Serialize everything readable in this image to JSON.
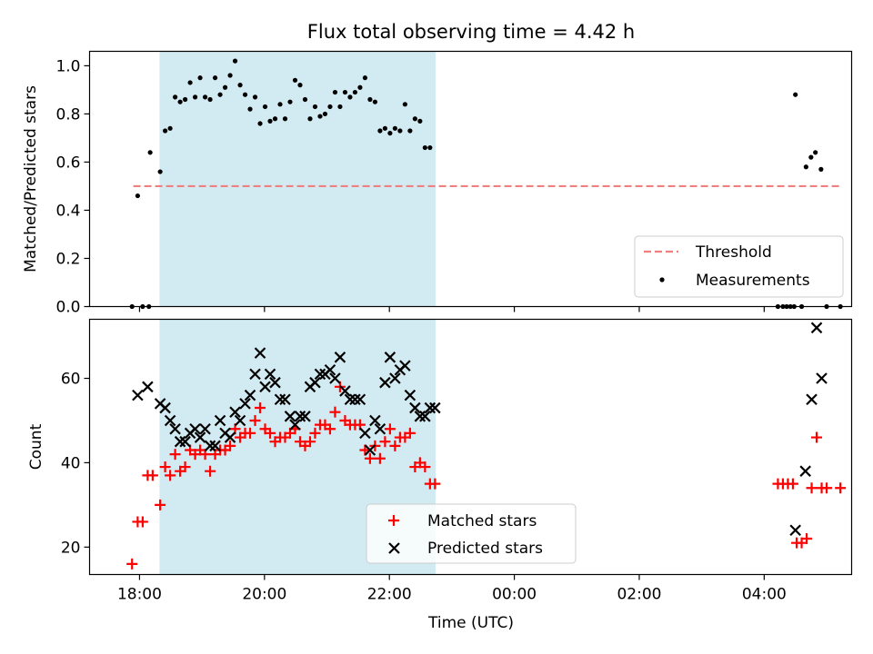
{
  "title": "Flux total observing time = 4.42 h",
  "xlabel": "Time (UTC)",
  "colors": {
    "threshold": "#f08080",
    "measurement": "#000000",
    "matched": "#ff0000",
    "predicted": "#000000",
    "window": "#add8e6"
  },
  "chart_data": [
    {
      "type": "scatter",
      "ylabel": "Matched/Predicted stars",
      "ylim": [
        0,
        1.06
      ],
      "xlim": [
        17.2,
        29.4
      ],
      "x_ticks": [
        18,
        20,
        22,
        24,
        26,
        28
      ],
      "y_ticks": [
        "0.0",
        "0.2",
        "0.4",
        "0.6",
        "0.8",
        "1.0"
      ],
      "x_ticks_labeled": false,
      "shaded_window": [
        18.32,
        22.74
      ],
      "legend_position": "lower right",
      "threshold": {
        "label": "Threshold",
        "y": 0.5,
        "x_range": [
          17.9,
          29.2
        ]
      },
      "series": [
        {
          "name": "Measurements",
          "points": [
            [
              17.88,
              0.0
            ],
            [
              17.97,
              0.46
            ],
            [
              18.05,
              0.0
            ],
            [
              18.15,
              0.0
            ],
            [
              18.17,
              0.64
            ],
            [
              18.33,
              0.56
            ],
            [
              18.41,
              0.73
            ],
            [
              18.49,
              0.74
            ],
            [
              18.57,
              0.87
            ],
            [
              18.65,
              0.85
            ],
            [
              18.73,
              0.86
            ],
            [
              18.81,
              0.93
            ],
            [
              18.89,
              0.87
            ],
            [
              18.97,
              0.95
            ],
            [
              19.05,
              0.87
            ],
            [
              19.13,
              0.86
            ],
            [
              19.21,
              0.95
            ],
            [
              19.29,
              0.88
            ],
            [
              19.37,
              0.91
            ],
            [
              19.45,
              0.96
            ],
            [
              19.53,
              1.02
            ],
            [
              19.61,
              0.92
            ],
            [
              19.69,
              0.88
            ],
            [
              19.77,
              0.82
            ],
            [
              19.85,
              0.87
            ],
            [
              19.93,
              0.76
            ],
            [
              20.01,
              0.83
            ],
            [
              20.09,
              0.77
            ],
            [
              20.17,
              0.78
            ],
            [
              20.25,
              0.84
            ],
            [
              20.33,
              0.78
            ],
            [
              20.41,
              0.85
            ],
            [
              20.49,
              0.94
            ],
            [
              20.57,
              0.92
            ],
            [
              20.65,
              0.86
            ],
            [
              20.73,
              0.78
            ],
            [
              20.81,
              0.83
            ],
            [
              20.89,
              0.79
            ],
            [
              20.97,
              0.8
            ],
            [
              21.05,
              0.83
            ],
            [
              21.13,
              0.89
            ],
            [
              21.21,
              0.83
            ],
            [
              21.29,
              0.89
            ],
            [
              21.37,
              0.87
            ],
            [
              21.45,
              0.89
            ],
            [
              21.53,
              0.91
            ],
            [
              21.61,
              0.95
            ],
            [
              21.69,
              0.86
            ],
            [
              21.77,
              0.85
            ],
            [
              21.85,
              0.73
            ],
            [
              21.93,
              0.74
            ],
            [
              22.01,
              0.72
            ],
            [
              22.09,
              0.74
            ],
            [
              22.17,
              0.73
            ],
            [
              22.25,
              0.84
            ],
            [
              22.33,
              0.73
            ],
            [
              22.41,
              0.78
            ],
            [
              22.49,
              0.77
            ],
            [
              22.57,
              0.66
            ],
            [
              22.65,
              0.66
            ],
            [
              28.22,
              0.0
            ],
            [
              28.3,
              0.0
            ],
            [
              28.36,
              0.0
            ],
            [
              28.42,
              0.0
            ],
            [
              28.48,
              0.0
            ],
            [
              28.5,
              0.88
            ],
            [
              28.6,
              0.0
            ],
            [
              28.67,
              0.58
            ],
            [
              28.75,
              0.62
            ],
            [
              28.82,
              0.64
            ],
            [
              28.91,
              0.57
            ],
            [
              29.0,
              0.0
            ],
            [
              29.22,
              0.0
            ]
          ]
        }
      ]
    },
    {
      "type": "scatter",
      "ylabel": "Count",
      "ylim": [
        13.5,
        74
      ],
      "xlim": [
        17.2,
        29.4
      ],
      "x_ticks": [
        18,
        20,
        22,
        24,
        26,
        28
      ],
      "x_tick_labels": [
        "18:00",
        "20:00",
        "22:00",
        "00:00",
        "02:00",
        "04:00"
      ],
      "y_ticks": [
        "20",
        "40",
        "60"
      ],
      "shaded_window": [
        18.32,
        22.74
      ],
      "legend_position": "lower center",
      "series": [
        {
          "name": "Matched stars",
          "marker": "+",
          "points": [
            [
              17.88,
              16
            ],
            [
              17.97,
              26
            ],
            [
              18.05,
              26
            ],
            [
              18.13,
              37
            ],
            [
              18.21,
              37
            ],
            [
              18.33,
              30
            ],
            [
              18.41,
              39
            ],
            [
              18.49,
              37
            ],
            [
              18.57,
              42
            ],
            [
              18.65,
              38
            ],
            [
              18.73,
              39
            ],
            [
              18.81,
              43
            ],
            [
              18.89,
              42
            ],
            [
              18.97,
              43
            ],
            [
              19.05,
              42
            ],
            [
              19.13,
              38
            ],
            [
              19.21,
              42
            ],
            [
              19.29,
              43
            ],
            [
              19.37,
              43
            ],
            [
              19.45,
              44
            ],
            [
              19.53,
              48
            ],
            [
              19.61,
              46
            ],
            [
              19.69,
              47
            ],
            [
              19.77,
              47
            ],
            [
              19.85,
              50
            ],
            [
              19.93,
              53
            ],
            [
              20.01,
              48
            ],
            [
              20.09,
              47
            ],
            [
              20.17,
              45
            ],
            [
              20.25,
              46
            ],
            [
              20.33,
              46
            ],
            [
              20.41,
              47
            ],
            [
              20.49,
              48
            ],
            [
              20.57,
              45
            ],
            [
              20.65,
              44
            ],
            [
              20.73,
              45
            ],
            [
              20.81,
              47
            ],
            [
              20.89,
              49
            ],
            [
              20.97,
              49
            ],
            [
              21.05,
              48
            ],
            [
              21.13,
              52
            ],
            [
              21.21,
              58
            ],
            [
              21.29,
              50
            ],
            [
              21.37,
              49
            ],
            [
              21.45,
              49
            ],
            [
              21.53,
              49
            ],
            [
              21.61,
              43
            ],
            [
              21.69,
              41
            ],
            [
              21.77,
              44
            ],
            [
              21.85,
              41
            ],
            [
              21.93,
              45
            ],
            [
              22.01,
              48
            ],
            [
              22.09,
              44
            ],
            [
              22.17,
              46
            ],
            [
              22.25,
              46
            ],
            [
              22.33,
              47
            ],
            [
              22.41,
              39
            ],
            [
              22.49,
              40
            ],
            [
              22.57,
              39
            ],
            [
              22.65,
              35
            ],
            [
              22.73,
              35
            ],
            [
              28.22,
              35
            ],
            [
              28.3,
              35
            ],
            [
              28.38,
              35
            ],
            [
              28.46,
              35
            ],
            [
              28.52,
              21
            ],
            [
              28.6,
              21
            ],
            [
              28.68,
              22
            ],
            [
              28.76,
              34
            ],
            [
              28.84,
              46
            ],
            [
              28.92,
              34
            ],
            [
              29.0,
              34
            ],
            [
              29.22,
              34
            ]
          ]
        },
        {
          "name": "Predicted stars",
          "marker": "x",
          "points": [
            [
              17.97,
              56
            ],
            [
              18.13,
              58
            ],
            [
              18.33,
              54
            ],
            [
              18.41,
              53
            ],
            [
              18.49,
              50
            ],
            [
              18.57,
              48
            ],
            [
              18.65,
              45
            ],
            [
              18.73,
              45
            ],
            [
              18.81,
              47
            ],
            [
              18.89,
              48
            ],
            [
              18.97,
              46
            ],
            [
              19.05,
              48
            ],
            [
              19.13,
              44
            ],
            [
              19.21,
              44
            ],
            [
              19.29,
              50
            ],
            [
              19.37,
              47
            ],
            [
              19.45,
              46
            ],
            [
              19.53,
              52
            ],
            [
              19.61,
              50
            ],
            [
              19.69,
              54
            ],
            [
              19.77,
              56
            ],
            [
              19.85,
              61
            ],
            [
              19.93,
              66
            ],
            [
              20.01,
              58
            ],
            [
              20.09,
              61
            ],
            [
              20.17,
              59
            ],
            [
              20.25,
              55
            ],
            [
              20.33,
              55
            ],
            [
              20.41,
              51
            ],
            [
              20.49,
              49
            ],
            [
              20.57,
              51
            ],
            [
              20.65,
              51
            ],
            [
              20.73,
              58
            ],
            [
              20.81,
              59
            ],
            [
              20.89,
              61
            ],
            [
              20.97,
              61
            ],
            [
              21.05,
              62
            ],
            [
              21.13,
              60
            ],
            [
              21.21,
              65
            ],
            [
              21.29,
              57
            ],
            [
              21.37,
              55
            ],
            [
              21.45,
              55
            ],
            [
              21.53,
              55
            ],
            [
              21.61,
              47
            ],
            [
              21.69,
              43
            ],
            [
              21.77,
              50
            ],
            [
              21.85,
              48
            ],
            [
              21.93,
              59
            ],
            [
              22.01,
              65
            ],
            [
              22.09,
              60
            ],
            [
              22.17,
              62
            ],
            [
              22.25,
              63
            ],
            [
              22.33,
              56
            ],
            [
              22.41,
              53
            ],
            [
              22.49,
              51
            ],
            [
              22.57,
              51
            ],
            [
              22.65,
              53
            ],
            [
              22.73,
              53
            ],
            [
              28.5,
              24
            ],
            [
              28.66,
              38
            ],
            [
              28.76,
              55
            ],
            [
              28.84,
              72
            ],
            [
              28.92,
              60
            ]
          ]
        }
      ]
    }
  ]
}
